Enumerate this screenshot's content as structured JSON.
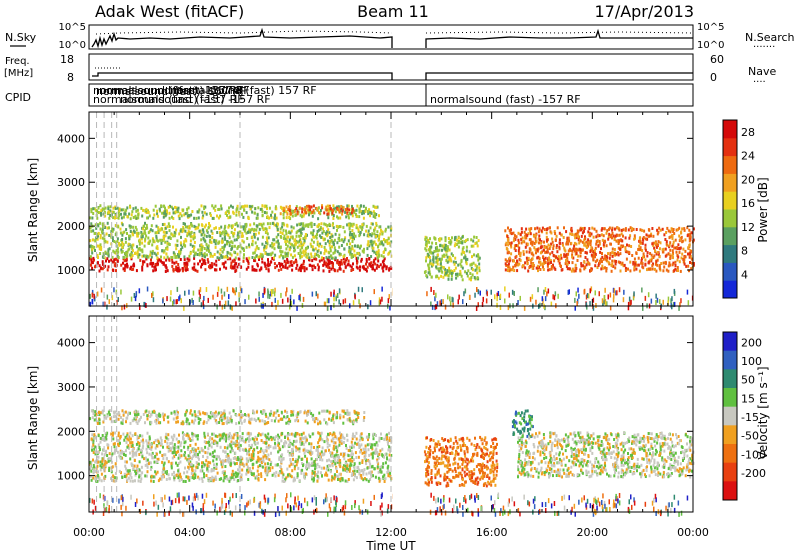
{
  "header": {
    "station": "Adak West (fitACF)",
    "beam": "Beam 11",
    "date": "17/Apr/2013"
  },
  "strip_labels": {
    "nsky": "N.Sky",
    "freq_line1": "Freq.",
    "freq_line2": "[MHz]",
    "cpid": "CPID",
    "nsearch": "N.Search",
    "nave": "Nave",
    "nsky_ticks": [
      "10^5",
      "10^0"
    ],
    "nsearch_ticks": [
      "10^5",
      "10^0"
    ],
    "freq_ticks": [
      "18",
      "8"
    ],
    "nave_ticks": [
      "60",
      "0"
    ]
  },
  "cpid": {
    "overlap_text": "normalsound (fast) -157 RF",
    "overlap_lines": [
      "normalsound (fast) -157 RF",
      "normalsound (fast) -157 RF",
      "normalsound (fast) -157 RF",
      "normalsound (fast) -157 RF",
      "normalsound (fast) 157 RF",
      "normalsound (fast) -157 RF"
    ],
    "second_text": "normalsound (fast) -157 RF"
  },
  "chart_data": [
    {
      "type": "heatmap",
      "title": "",
      "xlabel": "Time UT",
      "ylabel": "Slant Range [km]",
      "x_ticks": [
        "00:00",
        "04:00",
        "08:00",
        "12:00",
        "16:00",
        "20:00",
        "00:00"
      ],
      "xlim_hours": [
        0,
        24
      ],
      "y_ticks": [
        1000,
        2000,
        3000,
        4000
      ],
      "ylim": [
        180,
        4600
      ],
      "data_gap_hours": [
        12.05,
        13.3
      ],
      "colorbar": {
        "label": "Power [dB]",
        "ticks": [
          4,
          8,
          12,
          16,
          20,
          24,
          28
        ],
        "range": [
          0,
          30
        ],
        "colors": [
          "#1428d8",
          "#2a58c0",
          "#2f7a7e",
          "#5aa060",
          "#9ac83a",
          "#e8d020",
          "#f0a020",
          "#ee6a10",
          "#e43010",
          "#d40808"
        ]
      },
      "echo_bands": [
        {
          "t0": 0,
          "t1": 12,
          "r0": 1000,
          "r1": 1300,
          "power_db": 27
        },
        {
          "t0": 0,
          "t1": 12,
          "r0": 1300,
          "r1": 2100,
          "power_db": 14
        },
        {
          "t0": 0,
          "t1": 11.5,
          "r0": 2200,
          "r1": 2500,
          "power_db": 14
        },
        {
          "t0": 7.5,
          "t1": 10.5,
          "r0": 2300,
          "r1": 2500,
          "power_db": 21
        },
        {
          "t0": 13.3,
          "t1": 15.5,
          "r0": 800,
          "r1": 1800,
          "power_db": 14
        },
        {
          "t0": 16.5,
          "t1": 24,
          "r0": 1000,
          "r1": 2000,
          "power_db": 22
        }
      ]
    },
    {
      "type": "heatmap",
      "title": "",
      "xlabel": "Time UT",
      "ylabel": "Slant Range [km]",
      "x_ticks": [
        "00:00",
        "04:00",
        "08:00",
        "12:00",
        "16:00",
        "20:00",
        "00:00"
      ],
      "xlim_hours": [
        0,
        24
      ],
      "y_ticks": [
        1000,
        2000,
        3000,
        4000
      ],
      "ylim": [
        180,
        4600
      ],
      "data_gap_hours": [
        12.05,
        13.3
      ],
      "colorbar": {
        "label": "Velocity [m s⁻¹]",
        "ticks": [
          200,
          100,
          50,
          15,
          -15,
          -50,
          -100,
          -200
        ],
        "colors": [
          "#2020c8",
          "#3060c0",
          "#2e8a70",
          "#60c040",
          "#c8c8c0",
          "#f0a020",
          "#ee7010",
          "#e84010",
          "#dc1010"
        ]
      },
      "echo_bands": [
        {
          "t0": 0,
          "t1": 12,
          "r0": 900,
          "r1": 2000,
          "velocity": 0
        },
        {
          "t0": 0,
          "t1": 11,
          "r0": 2200,
          "r1": 2500,
          "velocity": 0
        },
        {
          "t0": 13.3,
          "t1": 16.2,
          "r0": 800,
          "r1": 1900,
          "velocity": -60
        },
        {
          "t0": 16.8,
          "t1": 17.6,
          "r0": 1900,
          "r1": 2500,
          "velocity": 40
        },
        {
          "t0": 17,
          "t1": 24,
          "r0": 1000,
          "r1": 2000,
          "velocity": 0
        }
      ]
    }
  ]
}
